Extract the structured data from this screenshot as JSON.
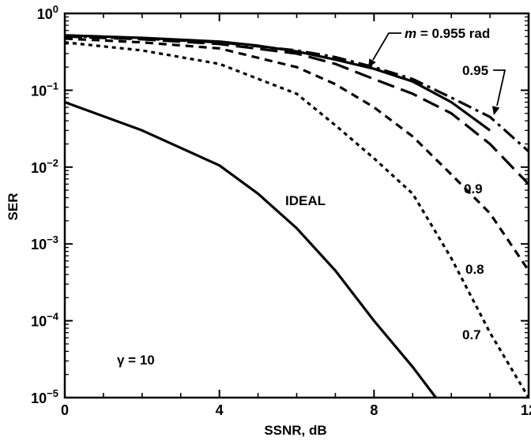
{
  "chart_data": {
    "type": "line",
    "title": "",
    "xlabel": "SSNR, dB",
    "ylabel": "SER",
    "xscale": "linear",
    "yscale": "log",
    "xlim": [
      0,
      12
    ],
    "ylim": [
      1e-05,
      1
    ],
    "grid": false,
    "legend": "none",
    "x_ticks": [
      {
        "value": 0,
        "label": "0"
      },
      {
        "value": 4,
        "label": "4"
      },
      {
        "value": 8,
        "label": "8"
      },
      {
        "value": 12,
        "label": "12"
      }
    ],
    "y_ticks": [
      {
        "exp": 0,
        "base": "10",
        "exponent": "0"
      },
      {
        "exp": -1,
        "base": "10",
        "exponent": "−1"
      },
      {
        "exp": -2,
        "base": "10",
        "exponent": "−2"
      },
      {
        "exp": -3,
        "base": "10",
        "exponent": "−3"
      },
      {
        "exp": -4,
        "base": "10",
        "exponent": "−4"
      },
      {
        "exp": -5,
        "base": "10",
        "exponent": "−5"
      }
    ],
    "series": [
      {
        "name": "IDEAL",
        "style": "solid",
        "points": [
          [
            0,
            0.07
          ],
          [
            2,
            0.03
          ],
          [
            4,
            0.0105
          ],
          [
            5,
            0.0045
          ],
          [
            6,
            0.0016
          ],
          [
            7,
            0.00045
          ],
          [
            8,
            0.0001
          ],
          [
            9,
            2.5e-05
          ],
          [
            9.6,
            1e-05
          ]
        ]
      },
      {
        "name": "0.7",
        "style": "dotted",
        "points": [
          [
            0,
            0.42
          ],
          [
            2,
            0.33
          ],
          [
            4,
            0.22
          ],
          [
            6,
            0.09
          ],
          [
            7,
            0.035
          ],
          [
            8,
            0.013
          ],
          [
            9,
            0.0045
          ],
          [
            10,
            0.00065
          ],
          [
            11,
            7e-05
          ],
          [
            12,
            1e-05
          ]
        ]
      },
      {
        "name": "0.8",
        "style": "dashed-short",
        "points": [
          [
            0,
            0.47
          ],
          [
            2,
            0.42
          ],
          [
            4,
            0.35
          ],
          [
            6,
            0.2
          ],
          [
            7,
            0.12
          ],
          [
            8,
            0.06
          ],
          [
            9,
            0.025
          ],
          [
            10,
            0.008
          ],
          [
            11,
            0.0025
          ],
          [
            12,
            0.00045
          ]
        ]
      },
      {
        "name": "0.9",
        "style": "dashed-long",
        "points": [
          [
            0,
            0.5
          ],
          [
            2,
            0.46
          ],
          [
            4,
            0.4
          ],
          [
            6,
            0.3
          ],
          [
            7,
            0.22
          ],
          [
            8,
            0.14
          ],
          [
            9,
            0.09
          ],
          [
            10,
            0.05
          ],
          [
            11,
            0.02
          ],
          [
            12,
            0.006
          ]
        ]
      },
      {
        "name": "0.95",
        "style": "dash-dot",
        "points": [
          [
            0,
            0.51
          ],
          [
            2,
            0.47
          ],
          [
            4,
            0.42
          ],
          [
            6,
            0.33
          ],
          [
            7,
            0.27
          ],
          [
            8,
            0.2
          ],
          [
            9,
            0.14
          ],
          [
            10,
            0.08
          ],
          [
            11,
            0.045
          ],
          [
            12,
            0.016
          ]
        ]
      },
      {
        "name": "m = 0.955 rad",
        "style": "solid",
        "points": [
          [
            0,
            0.52
          ],
          [
            2,
            0.48
          ],
          [
            4,
            0.43
          ],
          [
            5,
            0.38
          ],
          [
            6,
            0.32
          ],
          [
            7,
            0.25
          ],
          [
            8,
            0.19
          ],
          [
            9,
            0.13
          ],
          [
            10,
            0.07
          ],
          [
            11,
            0.03
          ]
        ]
      }
    ],
    "curve_labels": {
      "ideal": "IDEAL",
      "v07": "0.7",
      "v08": "0.8",
      "v09": "0.9",
      "v095": "0.95",
      "top_prefix": "m",
      "top_suffix": " = 0.955 rad"
    },
    "annotation": "γ = 10"
  }
}
